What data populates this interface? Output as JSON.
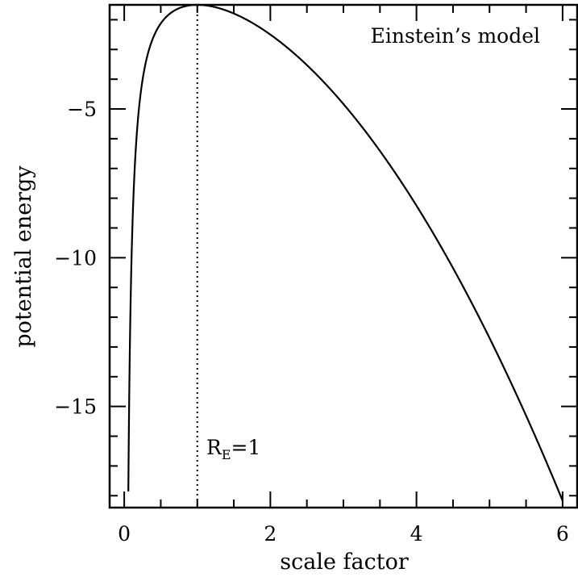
{
  "chart_data": {
    "type": "line",
    "xlabel": "scale factor",
    "ylabel": "potential energy",
    "xlim": [
      -0.2,
      6.2
    ],
    "ylim": [
      -18.4,
      -1.5
    ],
    "x_major_ticks": [
      0,
      2,
      4,
      6
    ],
    "x_minor_step": 0.5,
    "y_major_ticks": [
      -5,
      -10,
      -15
    ],
    "y_minor_step": 1,
    "x_tick_labels": [
      "0",
      "2",
      "4",
      "6"
    ],
    "y_tick_labels": [
      "−5",
      "−10",
      "−15"
    ],
    "grid": false,
    "legend": "none",
    "series": [
      {
        "function": "-1/x - x^2/2",
        "x_range": [
          0.056,
          6
        ],
        "x": [
          0.056,
          0.1,
          0.2,
          0.3,
          0.5,
          0.75,
          1,
          1.5,
          2,
          2.5,
          3,
          3.5,
          4,
          4.5,
          5,
          5.5,
          6
        ],
        "y": [
          -17.86,
          -10.0,
          -5.02,
          -3.38,
          -2.125,
          -1.615,
          -1.5,
          -1.792,
          -2.5,
          -3.525,
          -4.833,
          -6.411,
          -8.25,
          -10.347,
          -12.7,
          -15.307,
          -18.167
        ],
        "color": "#000000"
      }
    ],
    "annotations": [
      {
        "text": "Einstein’s model",
        "position": "top-right"
      },
      {
        "type": "vline",
        "x": 1,
        "style": "dotted",
        "label_main": "R",
        "label_sub": "E",
        "label_rest": "=1"
      }
    ]
  }
}
